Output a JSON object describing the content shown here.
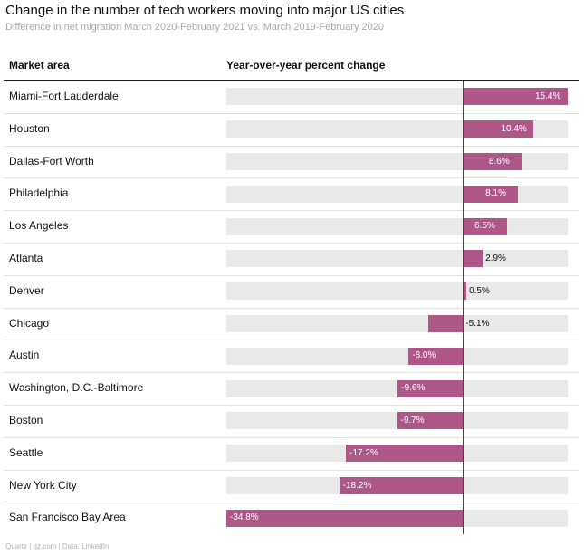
{
  "title": "Change in the number of tech workers moving into major US cities",
  "subtitle": "Difference in net migration March 2020-February 2021 vs. March 2019-February 2020",
  "columns": {
    "market": "Market area",
    "change": "Year-over-year percent change"
  },
  "footer": "Quartz | qz.com | Data: LinkedIn",
  "colors": {
    "bar": "#b0578a",
    "track": "#e9e9e9",
    "zero_line": "#444444"
  },
  "chart_data": {
    "type": "bar",
    "orientation": "horizontal",
    "categories": [
      "Miami-Fort Lauderdale",
      "Houston",
      "Dallas-Fort Worth",
      "Philadelphia",
      "Los Angeles",
      "Atlanta",
      "Denver",
      "Chicago",
      "Austin",
      "Washington, D.C.-Baltimore",
      "Boston",
      "Seattle",
      "New York City",
      "San Francisco Bay Area"
    ],
    "values": [
      15.4,
      10.4,
      8.6,
      8.1,
      6.5,
      2.9,
      0.5,
      -5.1,
      -8.0,
      -9.6,
      -9.7,
      -17.2,
      -18.2,
      -34.8
    ],
    "value_labels": [
      "15.4%",
      "10.4%",
      "8.6%",
      "8.1%",
      "6.5%",
      "2.9%",
      "0.5%",
      "-5.1%",
      "-8.0%",
      "-9.6%",
      "-9.7%",
      "-17.2%",
      "-18.2%",
      "-34.8%"
    ],
    "xlim": [
      -34.8,
      15.4
    ],
    "xlabel": "Year-over-year percent change",
    "ylabel": "Market area",
    "grid": false,
    "legend": "none"
  }
}
